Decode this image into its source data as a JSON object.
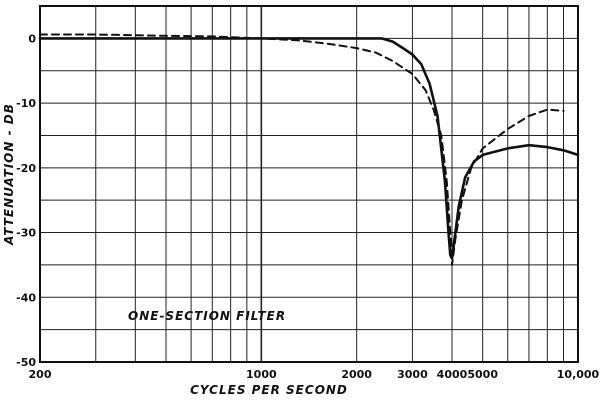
{
  "chart_data": {
    "type": "line",
    "title": "",
    "xlabel": "CYCLES PER SECOND",
    "ylabel": "ATTENUATION - DB",
    "x_scale": "log",
    "xlim": [
      200,
      10000
    ],
    "ylim": [
      -50,
      5
    ],
    "grid": true,
    "x_tick_labels": [
      {
        "value": 200,
        "label": "200"
      },
      {
        "value": 1000,
        "label": "1000"
      },
      {
        "value": 2000,
        "label": "2000"
      },
      {
        "value": 3000,
        "label": "3000"
      },
      {
        "value": 4000,
        "label": "4000"
      },
      {
        "value": 5000,
        "label": "5000"
      },
      {
        "value": 10000,
        "label": "10,000"
      }
    ],
    "x_minor_ticks": [
      300,
      400,
      500,
      600,
      700,
      800,
      900,
      6000,
      7000,
      8000,
      9000
    ],
    "y_ticks": [
      {
        "value": 0,
        "label": "0"
      },
      {
        "value": -10,
        "label": "-10"
      },
      {
        "value": -20,
        "label": "-20"
      },
      {
        "value": -30,
        "label": "-30"
      },
      {
        "value": -40,
        "label": "-40"
      },
      {
        "value": -50,
        "label": "-50"
      }
    ],
    "y_minor_ticks": [
      -5,
      -15,
      -25,
      -35,
      -45
    ],
    "annotation": "ONE-SECTION FILTER",
    "series": [
      {
        "style": "solid",
        "color": "#111111",
        "points": [
          [
            200,
            0
          ],
          [
            500,
            0
          ],
          [
            1000,
            0
          ],
          [
            2000,
            0
          ],
          [
            2400,
            0
          ],
          [
            2600,
            -0.5
          ],
          [
            2800,
            -1.5
          ],
          [
            3000,
            -2.5
          ],
          [
            3200,
            -4
          ],
          [
            3400,
            -7
          ],
          [
            3600,
            -12
          ],
          [
            3800,
            -22
          ],
          [
            3900,
            -30
          ],
          [
            3950,
            -33.5
          ],
          [
            4000,
            -34
          ],
          [
            4100,
            -30
          ],
          [
            4200,
            -26
          ],
          [
            4400,
            -21.5
          ],
          [
            4700,
            -19
          ],
          [
            5000,
            -18
          ],
          [
            6000,
            -17
          ],
          [
            7000,
            -16.5
          ],
          [
            8000,
            -16.8
          ],
          [
            9000,
            -17.3
          ],
          [
            10000,
            -18
          ]
        ]
      },
      {
        "style": "dashed",
        "color": "#111111",
        "points": [
          [
            200,
            0.6
          ],
          [
            300,
            0.6
          ],
          [
            500,
            0.4
          ],
          [
            700,
            0.3
          ],
          [
            1000,
            0
          ],
          [
            1300,
            -0.3
          ],
          [
            1600,
            -0.8
          ],
          [
            2000,
            -1.5
          ],
          [
            2300,
            -2.2
          ],
          [
            2600,
            -3.5
          ],
          [
            3000,
            -5.5
          ],
          [
            3300,
            -8
          ],
          [
            3500,
            -11
          ],
          [
            3700,
            -15
          ],
          [
            3850,
            -22
          ],
          [
            3950,
            -30
          ],
          [
            4000,
            -35
          ],
          [
            4100,
            -31
          ],
          [
            4300,
            -25
          ],
          [
            4600,
            -20
          ],
          [
            5000,
            -17
          ],
          [
            6000,
            -14
          ],
          [
            7000,
            -12
          ],
          [
            8000,
            -11
          ],
          [
            9000,
            -11.2
          ]
        ]
      }
    ]
  }
}
